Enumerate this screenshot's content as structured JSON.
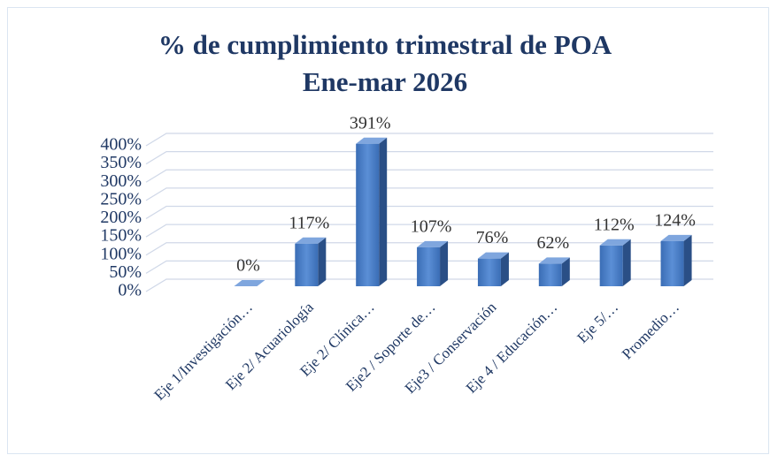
{
  "chart_data": {
    "type": "bar3d",
    "title": "% de cumplimiento trimestral de POA",
    "subtitle": "Ene-mar 2026",
    "categories": [
      "Eje 1/Investigación…",
      "Eje 2/ Acuariología",
      "Eje 2/ Clínica…",
      "Eje2 / Soporte de…",
      "Eje3 / Conservación",
      "Eje 4 / Educación…",
      "Eje 5/…",
      "Promedio…"
    ],
    "values": [
      0,
      117,
      391,
      107,
      76,
      62,
      112,
      124
    ],
    "value_labels": [
      "0%",
      "117%",
      "391%",
      "107%",
      "76%",
      "62%",
      "112%",
      "124%"
    ],
    "color": "#4472c4",
    "ylim": [
      0,
      400
    ],
    "yticks": [
      {
        "value": 0,
        "label": "0%"
      },
      {
        "value": 50,
        "label": "50%"
      },
      {
        "value": 100,
        "label": "100%"
      },
      {
        "value": 150,
        "label": "150%"
      },
      {
        "value": 200,
        "label": "200%"
      },
      {
        "value": 250,
        "label": "250%"
      },
      {
        "value": 300,
        "label": "300%"
      },
      {
        "value": 350,
        "label": "350%"
      },
      {
        "value": 400,
        "label": "400%"
      }
    ],
    "grid": true
  }
}
